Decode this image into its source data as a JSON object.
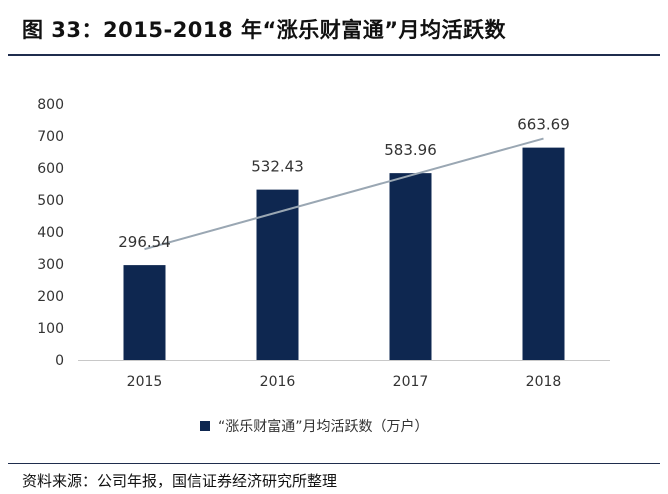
{
  "figure": {
    "title": "图 33：2015-2018 年“涨乐财富通”月均活跃数",
    "source": "资料来源：公司年报，国信证券经济研究所整理"
  },
  "colors": {
    "bar": "#0e2750",
    "trendline": "#9aa7b3",
    "axis": "#c8c8c8",
    "text": "#333333"
  },
  "chart_data": {
    "type": "bar",
    "categories": [
      "2015",
      "2016",
      "2017",
      "2018"
    ],
    "series": [
      {
        "name": "“涨乐财富通”月均活跃数（万户）",
        "values": [
          296.54,
          532.43,
          583.96,
          663.69
        ],
        "data_labels": [
          "296.54",
          "532.43",
          "583.96",
          "663.69"
        ]
      }
    ],
    "trendline": "linear",
    "ylim": [
      0,
      800
    ],
    "yticks": [
      0,
      100,
      200,
      300,
      400,
      500,
      600,
      700,
      800
    ],
    "xlabel": "",
    "ylabel": "",
    "grid": false,
    "legend": "bottom"
  }
}
